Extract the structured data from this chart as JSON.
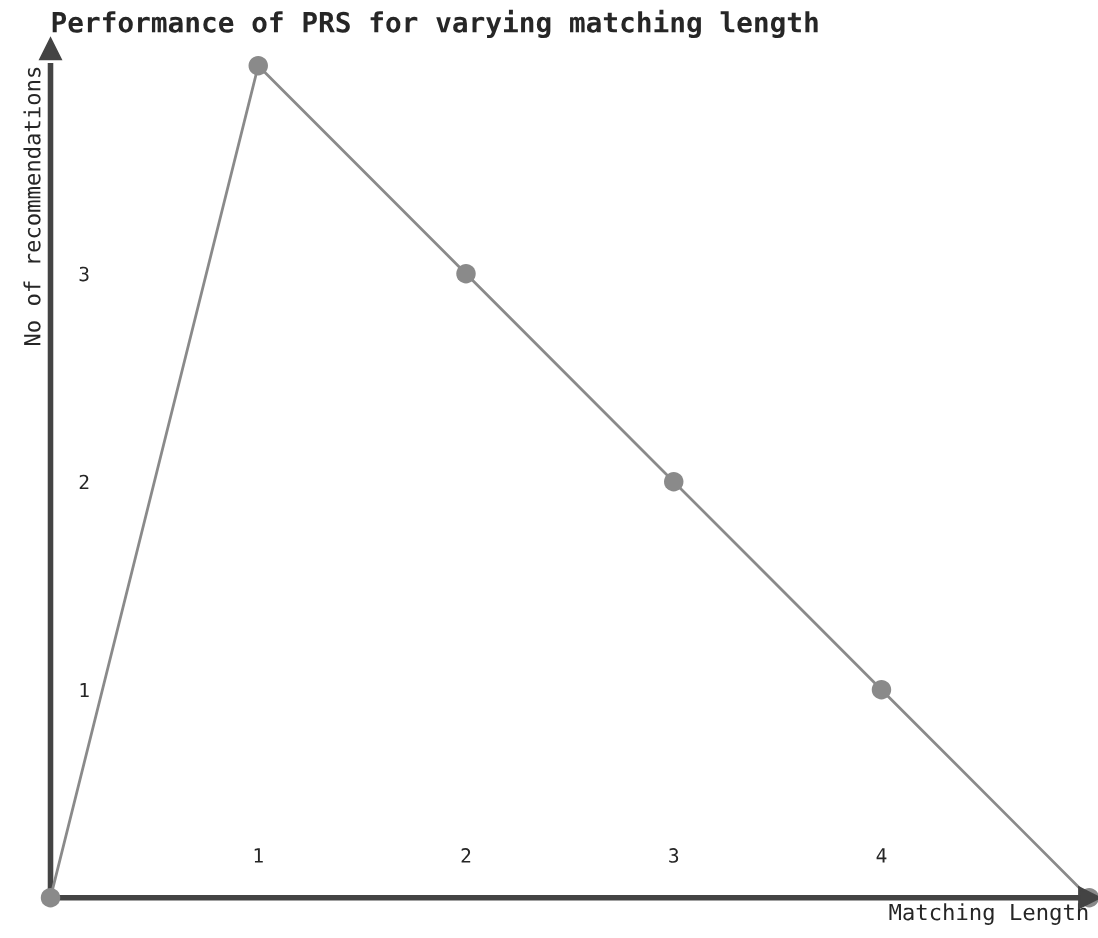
{
  "chart_data": {
    "type": "line",
    "title": "Performance of PRS for varying matching length",
    "xlabel": "Matching Length",
    "ylabel": "No of recommendations",
    "x": [
      0,
      1,
      2,
      3,
      4,
      5
    ],
    "series": [
      {
        "color": "#8a8a8a",
        "values": [
          0,
          4,
          3,
          2,
          1,
          0
        ]
      }
    ],
    "xlim": [
      0,
      5
    ],
    "ylim": [
      0,
      4
    ],
    "xticks": [
      1,
      2,
      3,
      4
    ],
    "yticks": [
      1,
      2,
      3
    ],
    "marker": "circle",
    "grid": false,
    "legend": false
  }
}
